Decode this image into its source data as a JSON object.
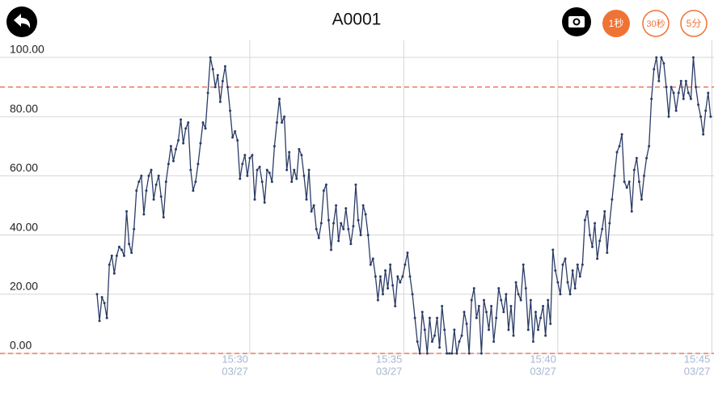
{
  "header": {
    "title": "A0001",
    "buttons": [
      "1秒",
      "30秒",
      "5分"
    ]
  },
  "chart_data": {
    "type": "line",
    "x": [
      925.04,
      925.12,
      925.2,
      925.28,
      925.36,
      925.44,
      925.52,
      925.6,
      925.68,
      925.76,
      925.84,
      925.92,
      926.0,
      926.08,
      926.16,
      926.24,
      926.32,
      926.4,
      926.48,
      926.56,
      926.64,
      926.72,
      926.8,
      926.88,
      926.96,
      927.04,
      927.12,
      927.2,
      927.28,
      927.36,
      927.44,
      927.52,
      927.6,
      927.68,
      927.76,
      927.84,
      927.92,
      928.0,
      928.08,
      928.16,
      928.24,
      928.32,
      928.4,
      928.48,
      928.56,
      928.64,
      928.72,
      928.8,
      928.88,
      928.96,
      929.04,
      929.12,
      929.2,
      929.28,
      929.36,
      929.44,
      929.52,
      929.6,
      929.68,
      929.76,
      929.84,
      929.92,
      930.0,
      930.08,
      930.16,
      930.24,
      930.32,
      930.4,
      930.48,
      930.56,
      930.64,
      930.72,
      930.8,
      930.88,
      930.96,
      931.04,
      931.12,
      931.2,
      931.28,
      931.36,
      931.44,
      931.52,
      931.6,
      931.68,
      931.76,
      931.84,
      931.92,
      932.0,
      932.08,
      932.16,
      932.24,
      932.32,
      932.4,
      932.48,
      932.56,
      932.64,
      932.72,
      932.8,
      932.88,
      932.96,
      933.04,
      933.12,
      933.2,
      933.28,
      933.36,
      933.44,
      933.52,
      933.6,
      933.68,
      933.76,
      933.84,
      933.92,
      934.0,
      934.08,
      934.16,
      934.24,
      934.32,
      934.4,
      934.48,
      934.56,
      934.64,
      934.72,
      934.8,
      934.88,
      934.96,
      935.04,
      935.12,
      935.2,
      935.28,
      935.36,
      935.44,
      935.52,
      935.6,
      935.68,
      935.76,
      935.84,
      935.92,
      936.0,
      936.08,
      936.16,
      936.24,
      936.32,
      936.4,
      936.48,
      936.56,
      936.64,
      936.72,
      936.8,
      936.88,
      936.96,
      937.04,
      937.12,
      937.2,
      937.28,
      937.36,
      937.44,
      937.52,
      937.6,
      937.68,
      937.76,
      937.84,
      937.92,
      938.0,
      938.08,
      938.16,
      938.24,
      938.32,
      938.4,
      938.48,
      938.56,
      938.64,
      938.72,
      938.8,
      938.88,
      938.96,
      939.04,
      939.12,
      939.2,
      939.28,
      939.36,
      939.44,
      939.52,
      939.6,
      939.68,
      939.76,
      939.84,
      939.92,
      940.0,
      940.08,
      940.16,
      940.24,
      940.32,
      940.4,
      940.48,
      940.56,
      940.64,
      940.72,
      940.8,
      940.88,
      940.96,
      941.04,
      941.12,
      941.2,
      941.28,
      941.36,
      941.44,
      941.52,
      941.6,
      941.68,
      941.76,
      941.84,
      941.92,
      942.0,
      942.08,
      942.16,
      942.24,
      942.32,
      942.4,
      942.48,
      942.56,
      942.64,
      942.72,
      942.8,
      942.88,
      942.96,
      943.04,
      943.12,
      943.2,
      943.28,
      943.36,
      943.44,
      943.52,
      943.6,
      943.68,
      943.76,
      943.84,
      943.92,
      944.0,
      944.08,
      944.16,
      944.24,
      944.32,
      944.4,
      944.48,
      944.56,
      944.64,
      944.72,
      944.8,
      944.88,
      944.96
    ],
    "series": [
      {
        "color": "#2b3c66",
        "values": [
          20,
          11,
          19,
          17,
          12,
          30,
          33,
          27,
          33,
          36,
          35,
          33,
          48,
          37,
          34,
          42,
          55,
          58,
          60,
          47,
          55,
          60,
          62,
          52,
          57,
          60,
          53,
          46,
          58,
          64,
          70,
          65,
          69,
          72,
          79,
          71,
          76,
          78,
          62,
          55,
          58,
          64,
          71,
          78,
          76,
          88,
          100,
          96,
          90,
          94,
          85,
          92,
          97,
          90,
          82,
          73,
          75,
          72,
          59,
          64,
          67,
          60,
          66,
          67,
          52,
          62,
          63,
          58,
          51,
          62,
          61,
          58,
          70,
          78,
          86,
          78,
          80,
          62,
          68,
          58,
          62,
          59,
          69,
          67,
          60,
          52,
          62,
          48,
          50,
          42,
          39,
          44,
          55,
          57,
          45,
          35,
          44,
          50,
          38,
          44,
          42,
          49,
          42,
          37,
          43,
          57,
          45,
          40,
          50,
          47,
          40,
          30,
          32,
          26,
          18,
          26,
          20,
          28,
          22,
          30,
          23,
          16,
          26,
          24,
          26,
          30,
          34,
          26,
          20,
          12,
          4,
          0,
          14,
          8,
          0,
          12,
          4,
          6,
          12,
          2,
          16,
          8,
          0,
          0,
          0,
          8,
          0,
          4,
          6,
          14,
          10,
          0,
          18,
          22,
          12,
          16,
          0,
          18,
          14,
          8,
          16,
          4,
          12,
          22,
          18,
          14,
          20,
          8,
          16,
          6,
          24,
          20,
          18,
          30,
          22,
          8,
          18,
          4,
          14,
          8,
          12,
          16,
          6,
          18,
          10,
          35,
          28,
          24,
          20,
          30,
          32,
          24,
          20,
          28,
          22,
          30,
          26,
          30,
          45,
          48,
          40,
          36,
          44,
          32,
          38,
          42,
          48,
          34,
          44,
          52,
          60,
          68,
          70,
          74,
          58,
          56,
          58,
          48,
          62,
          66,
          58,
          52,
          60,
          66,
          70,
          86,
          96,
          100,
          92,
          100,
          98,
          90,
          80,
          90,
          88,
          82,
          88,
          92,
          86,
          92,
          88,
          86,
          100,
          90,
          84,
          80,
          74,
          82,
          88,
          80
        ]
      }
    ],
    "xlim": [
      921.89,
      945.07
    ],
    "xticks": [
      {
        "value": 930,
        "label": "15:30"
      },
      {
        "value": 935,
        "label": "15:35"
      },
      {
        "value": 940,
        "label": "15:40"
      },
      {
        "value": 945,
        "label": "15:45"
      }
    ],
    "xtick_date": "03/27",
    "ylim": [
      0,
      100
    ],
    "yticks": [
      {
        "value": 0,
        "label": "0.00"
      },
      {
        "value": 20,
        "label": "20.00"
      },
      {
        "value": 40,
        "label": "40.00"
      },
      {
        "value": 60,
        "label": "60.00"
      },
      {
        "value": 80,
        "label": "80.00"
      },
      {
        "value": 100,
        "label": "100.00"
      }
    ],
    "grid": true,
    "reference_lines": {
      "values": [
        90,
        0
      ],
      "color": "#e8603c"
    },
    "show_markers": true
  }
}
